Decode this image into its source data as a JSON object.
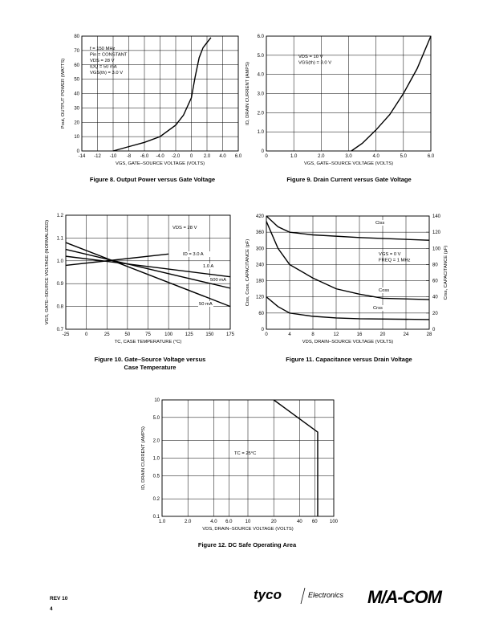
{
  "chart_data": [
    {
      "type": "line",
      "caption": [
        "Figure 8. Output Power versus Gate Voltage"
      ],
      "xlabel": "VGS, GATE–SOURCE VOLTAGE (VOLTS)",
      "ylabel": "Pout, OUTPUT POWER (WATTS)",
      "annotations": [
        "f = 150 MHz",
        "Pin = CONSTANT",
        "VDS = 28 V",
        "IDQ = 50 mA",
        "VGS(th) = 3.0 V"
      ],
      "xlim": [
        -14,
        6
      ],
      "xticks": [
        -14,
        -12,
        -10,
        -8,
        {
          "value": -6,
          "label": "-6.0"
        },
        {
          "value": -4,
          "label": "-4.0"
        },
        {
          "value": -2,
          "label": "-2.0"
        },
        0,
        {
          "value": 2,
          "label": "2.0"
        },
        {
          "value": 4,
          "label": "4.0"
        },
        {
          "value": 6,
          "label": "6.0"
        }
      ],
      "ylim": [
        0,
        80
      ],
      "yticks": [
        0,
        10,
        20,
        30,
        40,
        50,
        60,
        70,
        80
      ],
      "grid": true,
      "series": [
        {
          "color": "#000000",
          "x": [
            -10,
            -8,
            -6,
            -4,
            -2,
            -1,
            0,
            0.5,
            1,
            1.5,
            2.5
          ],
          "values": [
            0,
            3,
            6,
            10,
            18,
            25,
            37,
            52,
            65,
            72,
            79
          ]
        }
      ]
    },
    {
      "type": "line",
      "caption": [
        "Figure 9. Drain Current versus Gate Voltage"
      ],
      "xlabel": "VGS, GATE–SOURCE VOLTAGE (VOLTS)",
      "ylabel": "ID, DRAIN CURRENT (AMPS)",
      "annotations": [
        "VDS = 10 V",
        "VGS(th) = 3.0 V"
      ],
      "xlim": [
        0,
        6
      ],
      "xticks": [
        0,
        {
          "value": 1,
          "label": "1.0"
        },
        {
          "value": 2,
          "label": "2.0"
        },
        {
          "value": 3,
          "label": "3.0"
        },
        {
          "value": 4,
          "label": "4.0"
        },
        {
          "value": 5,
          "label": "5.0"
        },
        {
          "value": 6,
          "label": "6.0"
        }
      ],
      "ylim": [
        0,
        6
      ],
      "yticks": [
        0,
        {
          "value": 1,
          "label": "1.0"
        },
        {
          "value": 2,
          "label": "2.0"
        },
        {
          "value": 3,
          "label": "3.0"
        },
        {
          "value": 4,
          "label": "4.0"
        },
        {
          "value": 5,
          "label": "5.0"
        },
        {
          "value": 6,
          "label": "6.0"
        }
      ],
      "grid": true,
      "series": [
        {
          "color": "#000000",
          "x": [
            3.1,
            3.5,
            4,
            4.5,
            5,
            5.5,
            6
          ],
          "values": [
            0,
            0.4,
            1.1,
            1.9,
            3.0,
            4.3,
            6.0
          ]
        }
      ]
    },
    {
      "type": "line",
      "caption": [
        "Figure 10. Gate–Source Voltage versus",
        "Case Temperature"
      ],
      "xlabel": "TC, CASE TEMPERATURE (°C)",
      "ylabel": "VGS, GATE–SOURCE VOLTAGE (NORMALIZED)",
      "annotations": [
        "VDS = 28 V"
      ],
      "xlim": [
        -25,
        175
      ],
      "xticks": [
        -25,
        0,
        25,
        50,
        75,
        100,
        125,
        150,
        175
      ],
      "ylim": [
        0.7,
        1.2
      ],
      "yticks": [
        0.7,
        0.8,
        0.9,
        {
          "value": 1.0,
          "label": "1.0"
        },
        1.1,
        1.2
      ],
      "grid": true,
      "series": [
        {
          "name": "ID = 3.0 A",
          "color": "#000000",
          "x": [
            -25,
            100
          ],
          "values": [
            0.98,
            1.03
          ]
        },
        {
          "name": "1.0 A",
          "color": "#000000",
          "x": [
            -25,
            175
          ],
          "values": [
            1.02,
            0.93
          ]
        },
        {
          "name": "500 mA",
          "color": "#000000",
          "x": [
            -25,
            175
          ],
          "values": [
            1.05,
            0.88
          ]
        },
        {
          "name": "50 mA",
          "color": "#000000",
          "x": [
            -25,
            175
          ],
          "values": [
            1.08,
            0.8
          ]
        }
      ]
    },
    {
      "type": "line",
      "caption": [
        "Figure 11. Capacitance versus Drain Voltage"
      ],
      "xlabel": "VDS, DRAIN–SOURCE VOLTAGE (VOLTS)",
      "ylabel": "Ciss, Coss, CAPACITANCE (pF)",
      "y2label": "Crss, CAPACITANCE (pF)",
      "annotations": [
        "VGS = 0 V",
        "FREQ = 1 MHz"
      ],
      "xlim": [
        0,
        28
      ],
      "xticks": [
        0,
        4,
        8,
        12,
        16,
        20,
        24,
        28
      ],
      "ylim": [
        0,
        420
      ],
      "yticks": [
        0,
        60,
        120,
        180,
        240,
        300,
        360,
        420
      ],
      "y2lim": [
        0,
        140
      ],
      "y2ticks": [
        0,
        20,
        40,
        60,
        80,
        100,
        120,
        140
      ],
      "grid": true,
      "series": [
        {
          "name": "Ciss",
          "color": "#000000",
          "x": [
            0,
            2,
            4,
            8,
            16,
            28
          ],
          "values": [
            420,
            380,
            360,
            350,
            340,
            330
          ]
        },
        {
          "name": "Coss",
          "color": "#000000",
          "x": [
            0,
            2,
            4,
            8,
            12,
            16,
            20,
            28
          ],
          "values": [
            400,
            300,
            240,
            190,
            150,
            130,
            115,
            110
          ]
        },
        {
          "name": "Crss",
          "color": "#000000",
          "axis": "y2",
          "x": [
            0,
            2,
            4,
            8,
            12,
            16,
            28
          ],
          "values": [
            40,
            28,
            20,
            16,
            14,
            13,
            12
          ]
        }
      ]
    },
    {
      "type": "line",
      "caption": [
        "Figure 12. DC Safe Operating Area"
      ],
      "xlabel": "VDS, DRAIN–SOURCE VOLTAGE (VOLTS)",
      "ylabel": "ID, DRAIN CURRENT (AMPS)",
      "annotations": [
        "TC = 25°C"
      ],
      "xlog": true,
      "ylog": true,
      "xlim": [
        1,
        100
      ],
      "xticks": [
        {
          "value": 1,
          "label": "1.0"
        },
        {
          "value": 2,
          "label": "2.0"
        },
        {
          "value": 4,
          "label": "4.0"
        },
        {
          "value": 6,
          "label": "6.0"
        },
        10,
        20,
        40,
        60,
        100
      ],
      "ylim": [
        0.1,
        10
      ],
      "yticks": [
        0.1,
        0.2,
        0.5,
        {
          "value": 1,
          "label": "1.0"
        },
        {
          "value": 2,
          "label": "2.0"
        },
        {
          "value": 5,
          "label": "5.0"
        },
        10
      ],
      "grid": true,
      "series": [
        {
          "color": "#000000",
          "x": [
            20,
            65,
            65
          ],
          "values": [
            10,
            2.8,
            0.1
          ]
        }
      ]
    }
  ],
  "footer": {
    "revision": "REV 10",
    "page": "4",
    "brand": "tyco",
    "division": "Electronics",
    "partner": "M/A-COM"
  }
}
